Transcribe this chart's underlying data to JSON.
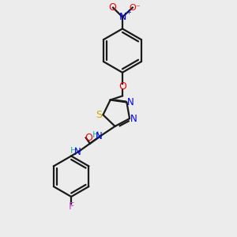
{
  "bg_color": "#ececec",
  "bond_color": "#1a1a1a",
  "atom_colors": {
    "N": "#0000ee",
    "O": "#ee0000",
    "S": "#ccaa00",
    "F": "#cc44cc",
    "H": "#22aaaa",
    "C": "#1a1a1a"
  },
  "lw": 1.6,
  "fontsize": 8.5
}
